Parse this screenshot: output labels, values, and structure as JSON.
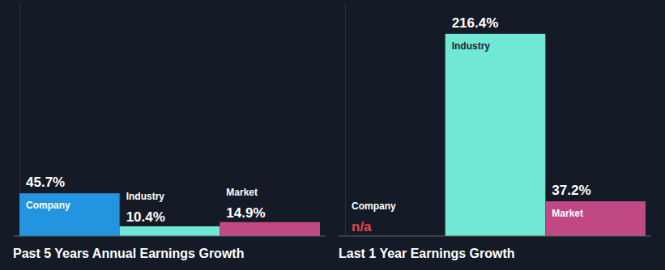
{
  "chart_data": [
    {
      "type": "bar",
      "title": "Past 5 Years Annual Earnings Growth",
      "categories": [
        "Company",
        "Industry",
        "Market"
      ],
      "values": [
        45.7,
        10.4,
        14.9
      ],
      "value_labels": [
        "45.7%",
        "10.4%",
        "14.9%"
      ],
      "colors": [
        "#2394df",
        "#71e7d6",
        "#c04885"
      ],
      "ylim": [
        0,
        250
      ],
      "data_labels": true,
      "tick_labels": false,
      "grid": false
    },
    {
      "type": "bar",
      "title": "Last 1 Year Earnings Growth",
      "categories": [
        "Company",
        "Industry",
        "Market"
      ],
      "values": [
        null,
        216.4,
        37.2
      ],
      "value_labels": [
        "n/a",
        "216.4%",
        "37.2%"
      ],
      "colors": [
        "#2394df",
        "#71e7d6",
        "#c04885"
      ],
      "ylim": [
        0,
        250
      ],
      "data_labels": true,
      "tick_labels": false,
      "grid": false
    }
  ]
}
